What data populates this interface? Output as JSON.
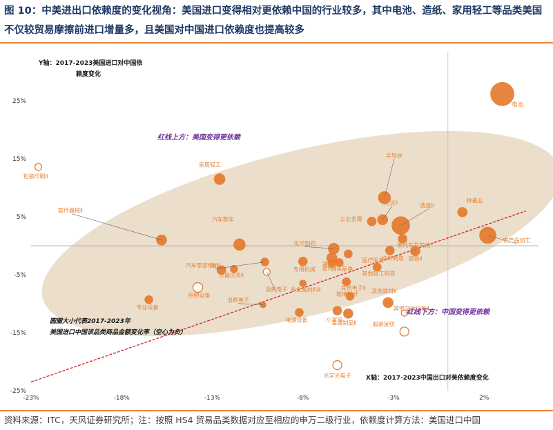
{
  "figure": {
    "title": "图 10：中美进出口依赖度的变化视角：美国进口变得相对更依赖中国的行业较多，其中电池、造纸、家用轻工等品类美国不仅较贸易摩擦前进口增量多，且美国对中国进口依赖度也提高较多",
    "source": "资料来源：ITC，天风证券研究所；注：按照 HS4 贸易品类数据对应至相应的申万二级行业，依赖度计算方法：美国进口中国"
  },
  "colors": {
    "accent": "#e8843a",
    "bubble": "#e67a2e",
    "ellipse": "#e9dcc6",
    "trend": "#d42a2a",
    "annotation": "#7030a0",
    "label": "#e8843a"
  },
  "chart_data": {
    "type": "scatter",
    "subtype": "bubble",
    "ylabel": "Y轴：2017-2023美国进口对中国依赖度变化",
    "xlabel": "X轴：2017-2023中国出口对美依赖度变化",
    "xlim": [
      -23,
      5
    ],
    "ylim": [
      -25,
      28
    ],
    "xticks": [
      "-23%",
      "-18%",
      "-13%",
      "-8%",
      "-3%",
      "2%"
    ],
    "yticks": [
      "25%",
      "15%",
      "5%",
      "-5%",
      "-15%",
      "-25%"
    ],
    "xtick_values": [
      -23,
      -18,
      -13,
      -8,
      -3,
      2
    ],
    "ytick_values": [
      25,
      15,
      5,
      -5,
      -15,
      -25
    ],
    "grid": false,
    "annotations": {
      "above": "红线上方：美国变得更依赖",
      "below": "红线下方：中国变得更依赖",
      "size_note_1": "圆圈大小代表2017-2023年",
      "size_note_2": "美国进口中国该品类商品金额变化率（空心为负）"
    },
    "points": [
      {
        "label": "电池",
        "x": 3.0,
        "y": 26.2,
        "size": 30,
        "hollow": false
      },
      {
        "label": "包装印刷Ⅱ",
        "x": -22.6,
        "y": 13.6,
        "size": 6,
        "hollow": true
      },
      {
        "label": "家用轻工",
        "x": -12.6,
        "y": 11.5,
        "size": 12,
        "hollow": false
      },
      {
        "label": "半导体",
        "x": -3.5,
        "y": 8.3,
        "size": 14,
        "hollow": false
      },
      {
        "label": "光伏Ⅱ",
        "x": -3.6,
        "y": 4.5,
        "size": 11,
        "hollow": false
      },
      {
        "label": "工业金属",
        "x": -4.2,
        "y": 4.2,
        "size": 9,
        "hollow": false
      },
      {
        "label": "造纸Ⅱ",
        "x": -2.6,
        "y": 3.5,
        "size": 22,
        "hollow": false
      },
      {
        "label": "种植业",
        "x": 0.8,
        "y": 5.8,
        "size": 10,
        "hollow": false
      },
      {
        "label": "农产品加工",
        "x": 2.2,
        "y": 1.8,
        "size": 20,
        "hollow": false
      },
      {
        "label": "医疗器械Ⅱ",
        "x": -15.8,
        "y": 1.0,
        "size": 11,
        "hollow": false
      },
      {
        "label": "汽车整车",
        "x": -11.5,
        "y": 0.2,
        "size": 13,
        "hollow": false
      },
      {
        "label": "摩托车及其他",
        "x": -2.5,
        "y": 1.2,
        "size": 9,
        "hollow": false
      },
      {
        "label": "化学制药",
        "x": -6.3,
        "y": -0.5,
        "size": 12,
        "hollow": false
      },
      {
        "label": "橡胶",
        "x": -10.1,
        "y": -2.8,
        "size": 8,
        "hollow": false
      },
      {
        "label": "通用设备",
        "x": -6.4,
        "y": -2.1,
        "size": 11,
        "hollow": false
      },
      {
        "label": "医疗服务",
        "x": -5.5,
        "y": -1.4,
        "size": 8,
        "hollow": false
      },
      {
        "label": "纺织制造",
        "x": -3.2,
        "y": -0.8,
        "size": 9,
        "hollow": false
      },
      {
        "label": "钢铁Ⅱ",
        "x": -1.8,
        "y": -0.9,
        "size": 10,
        "hollow": false
      },
      {
        "label": "汽车零部件Ⅱ",
        "x": -12.5,
        "y": -4.2,
        "size": 9,
        "hollow": false
      },
      {
        "label": "仪器仪表Ⅱ",
        "x": -11.8,
        "y": -4.0,
        "size": 7,
        "hollow": false
      },
      {
        "label": "消费电子",
        "x": -10.0,
        "y": -4.5,
        "size": 6,
        "hollow": true
      },
      {
        "label": "专用机械",
        "x": -8.0,
        "y": -2.7,
        "size": 9,
        "hollow": false
      },
      {
        "label": "塑料Ⅱ",
        "x": -6.4,
        "y": -3.0,
        "size": 8,
        "hollow": false
      },
      {
        "label": "白色家电",
        "x": -6.0,
        "y": -2.9,
        "size": 8,
        "hollow": false
      },
      {
        "label": "其他轻工制造",
        "x": -3.9,
        "y": -3.7,
        "size": 8,
        "hollow": false
      },
      {
        "label": "其他电子Ⅱ",
        "x": -5.6,
        "y": -6.2,
        "size": 8,
        "hollow": false
      },
      {
        "label": "非金属材料Ⅱ",
        "x": -8.0,
        "y": -6.5,
        "size": 6,
        "hollow": false
      },
      {
        "label": "玻璃玻纤",
        "x": -5.4,
        "y": -8.7,
        "size": 8,
        "hollow": false
      },
      {
        "label": "其他建材Ⅱ",
        "x": -3.3,
        "y": -9.8,
        "size": 11,
        "hollow": false
      },
      {
        "label": "照明设备",
        "x": -13.8,
        "y": -7.2,
        "size": 10,
        "hollow": true
      },
      {
        "label": "专业设备",
        "x": -16.5,
        "y": -9.3,
        "size": 8,
        "hollow": false
      },
      {
        "label": "消费电子",
        "x": -10.2,
        "y": -10.2,
        "size": 5,
        "hollow": false
      },
      {
        "label": "电源设备",
        "x": -8.2,
        "y": -11.5,
        "size": 8,
        "hollow": false
      },
      {
        "label": "小家电",
        "x": -6.1,
        "y": -11.2,
        "size": 9,
        "hollow": false
      },
      {
        "label": "金属制品Ⅱ",
        "x": -5.5,
        "y": -11.7,
        "size": 10,
        "hollow": false
      },
      {
        "label": "其他交运设备Ⅱ",
        "x": -2.4,
        "y": -11.6,
        "size": 5,
        "hollow": true
      },
      {
        "label": "服装家纺",
        "x": -2.4,
        "y": -14.8,
        "size": 9,
        "hollow": true
      },
      {
        "label": "光学光电子",
        "x": -6.1,
        "y": -20.6,
        "size": 9,
        "hollow": true
      }
    ],
    "trendline": {
      "from": [
        -23,
        -23.5
      ],
      "to": [
        4.3,
        6.0
      ]
    },
    "ellipse": {
      "cx": -8.1,
      "cy": 2.1,
      "rx": 14.7,
      "ry": 14.2,
      "rotation": -14
    }
  }
}
